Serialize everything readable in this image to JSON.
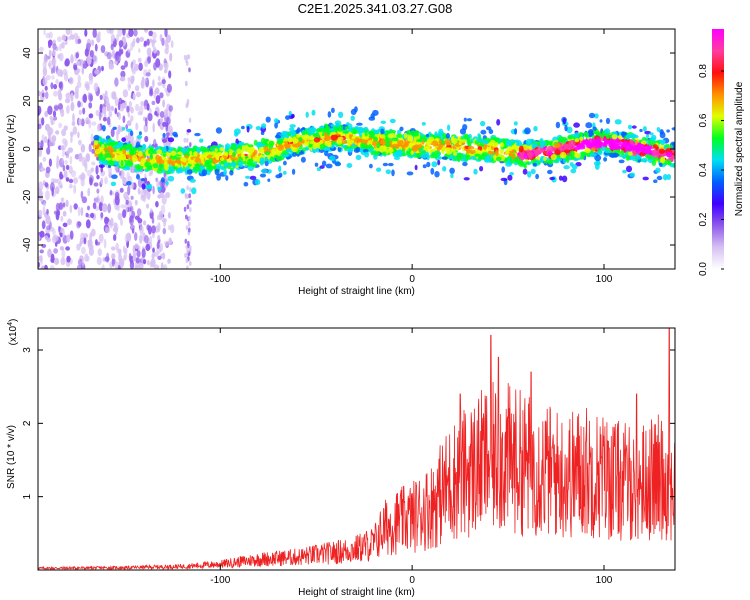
{
  "title": "C2E1.2025.341.03.27.G08",
  "chart_data": [
    {
      "type": "heatmap",
      "name": "spectrogram",
      "xlabel": "Height of straight line (km)",
      "ylabel": "Frequency (Hz)",
      "xlim": [
        -195,
        137
      ],
      "ylim": [
        -50,
        50
      ],
      "xticks": [
        -100,
        0,
        100
      ],
      "xtick_labels": [
        "-100",
        "0",
        "100"
      ],
      "yticks": [
        -40,
        -20,
        0,
        20,
        40
      ],
      "ytick_labels": [
        "-40",
        "-20",
        "0",
        "20",
        "40"
      ],
      "ridge": {
        "x": [
          -165,
          -150,
          -140,
          -120,
          -100,
          -80,
          -60,
          -40,
          -20,
          0,
          20,
          40,
          60,
          80,
          100,
          120,
          137
        ],
        "y": [
          0,
          -3,
          -4,
          -5,
          -4,
          -2,
          3,
          5,
          3,
          2,
          1,
          0,
          -2,
          0,
          3,
          0,
          -3
        ]
      },
      "colorbar": {
        "label": "Normalized spectral amplitude",
        "range": [
          0,
          0.97
        ],
        "ticks": [
          0.0,
          0.2,
          0.4,
          0.6,
          0.8
        ],
        "tick_labels": [
          "0.0",
          "0.2",
          "0.4",
          "0.6",
          "0.8"
        ],
        "colors": [
          "#ffffff",
          "#d6c0f2",
          "#8f58ec",
          "#3f00ff",
          "#0060ff",
          "#00e0f0",
          "#00ff20",
          "#e0ff00",
          "#ff9000",
          "#ff1010",
          "#ff3da0",
          "#ff00ff"
        ]
      }
    },
    {
      "type": "line",
      "name": "snr",
      "xlabel": "Height of straight line (km)",
      "ylabel": "SNR (10 * v/v)",
      "yscale_note": "(x10",
      "yscale_exp": "4",
      "yscale_close": ")",
      "xlim": [
        -195,
        137
      ],
      "ylim": [
        0,
        3.3
      ],
      "xticks": [
        -100,
        0,
        100
      ],
      "xtick_labels": [
        "-100",
        "0",
        "100"
      ],
      "yticks": [
        1,
        2,
        3
      ],
      "ytick_labels": [
        "1",
        "2",
        "3"
      ],
      "line_color": "#ee2222",
      "envelope": {
        "x": [
          -195,
          -150,
          -120,
          -100,
          -80,
          -60,
          -40,
          -30,
          -20,
          -15,
          -10,
          0,
          10,
          20,
          30,
          40,
          50,
          60,
          70,
          80,
          90,
          100,
          110,
          120,
          130,
          137
        ],
        "y": [
          0.03,
          0.04,
          0.06,
          0.1,
          0.18,
          0.22,
          0.3,
          0.35,
          0.45,
          0.7,
          0.8,
          0.9,
          1.1,
          1.5,
          1.7,
          1.9,
          1.9,
          1.8,
          1.7,
          1.6,
          1.7,
          1.6,
          1.5,
          1.5,
          1.6,
          1.4
        ]
      },
      "peaks": [
        {
          "x": 41,
          "y": 3.2
        },
        {
          "x": 45,
          "y": 2.9
        },
        {
          "x": 62,
          "y": 2.7
        },
        {
          "x": 25,
          "y": 2.4
        },
        {
          "x": 134,
          "y": 3.3
        },
        {
          "x": 117,
          "y": 2.4
        }
      ]
    }
  ]
}
